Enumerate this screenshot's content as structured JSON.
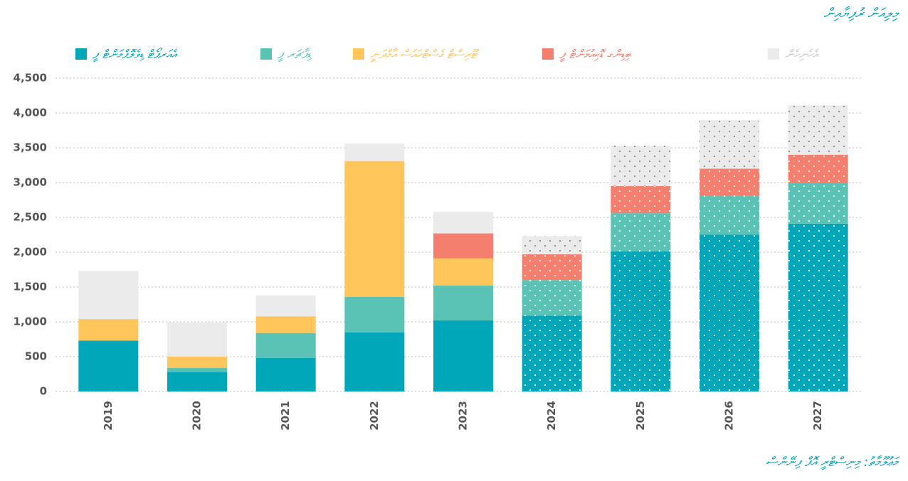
{
  "chart_data": {
    "type": "stacked_bar",
    "title": "މިލިއަން ރުފިޔާއިން",
    "source": "މަޢުލޫމާތު: މިނިސްޓްރީ އޮފް ފިނޭންސް",
    "categories": [
      "2019",
      "2020",
      "2021",
      "2022",
      "2023",
      "2024",
      "2025",
      "2026",
      "2027"
    ],
    "patterned": [
      false,
      false,
      false,
      false,
      false,
      true,
      true,
      true,
      true
    ],
    "series": [
      {
        "name": "އެއަރޕޯޓް ޑިވެލޮޕްމަންޓް ފީ",
        "color": "#00a7b9",
        "values": [
          730,
          280,
          480,
          850,
          1020,
          1090,
          2010,
          2250,
          2410
        ]
      },
      {
        "name": "ޑިޕާޗަރ ފީ",
        "color": "#5bc3b6",
        "values": [
          0,
          60,
          360,
          510,
          500,
          510,
          550,
          560,
          590
        ]
      },
      {
        "name": "ޓޫރިސްޓް ގެސްޓްހައުސް އާމްދަނީ",
        "color": "#fec65b",
        "values": [
          310,
          160,
          240,
          1950,
          390,
          0,
          0,
          0,
          0
        ]
      },
      {
        "name": "ބިޑިންގ ޑޮކިއުމަންޓް ފީ",
        "color": "#f47f6f",
        "values": [
          0,
          0,
          0,
          0,
          360,
          370,
          390,
          390,
          400
        ]
      },
      {
        "name": "އެހެނިހެން",
        "color": "#ebebeb",
        "values": [
          690,
          490,
          300,
          250,
          310,
          260,
          580,
          700,
          710
        ]
      }
    ],
    "ylim": [
      0,
      4500
    ],
    "yticks": [
      0,
      500,
      {
        "value": 1000,
        "label": "1,000"
      },
      {
        "value": 1500,
        "label": "1,500"
      },
      {
        "value": 2000,
        "label": "2,000"
      },
      {
        "value": 2500,
        "label": "2,500"
      },
      {
        "value": 3000,
        "label": "3,000"
      },
      {
        "value": 3500,
        "label": "3,500"
      },
      {
        "value": 4000,
        "label": "4,000"
      },
      {
        "value": 4500,
        "label": "4,500"
      }
    ],
    "grid": true
  }
}
